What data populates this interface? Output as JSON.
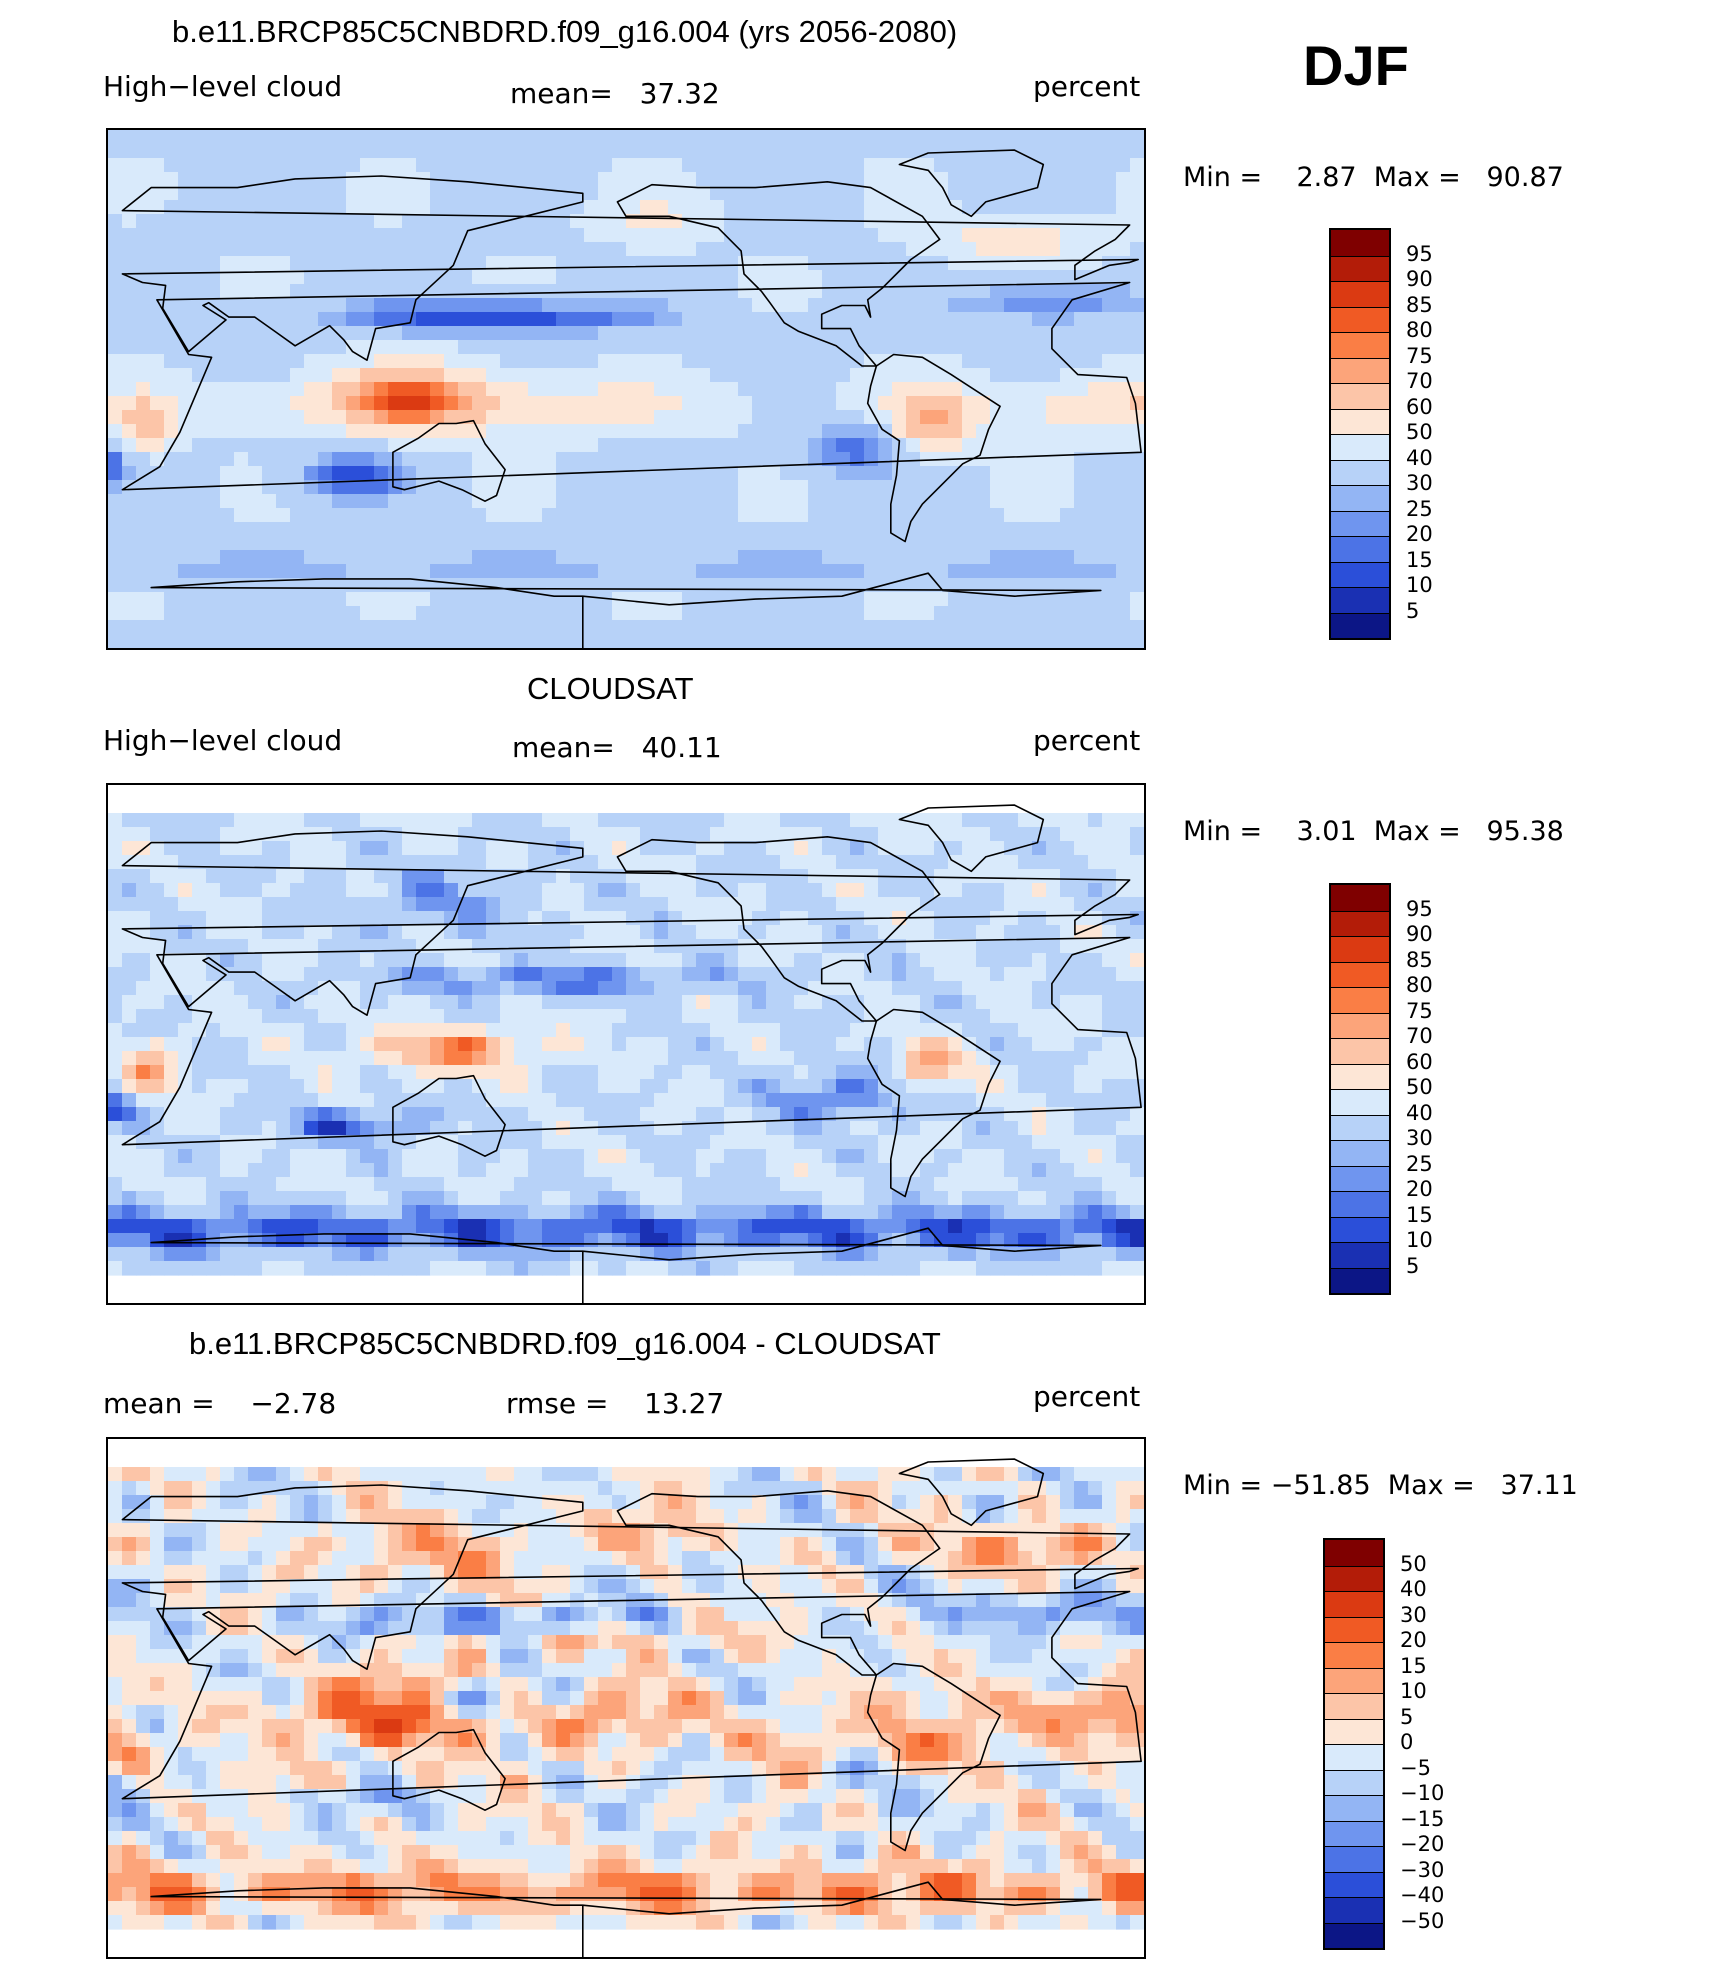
{
  "season": "DJF",
  "panels": [
    {
      "title": "b.e11.BRCP85C5CNBDRD.f09_g16.004 (yrs 2056-2080)",
      "left_label": "High−level cloud",
      "center_label": "mean=   37.32",
      "right_label": "percent",
      "min_max": "Min =    2.87  Max =   90.87",
      "field": "model",
      "colorbar": {
        "labels": [
          "95",
          "90",
          "85",
          "80",
          "75",
          "70",
          "60",
          "50",
          "40",
          "30",
          "25",
          "20",
          "15",
          "10",
          "5"
        ],
        "colors": [
          "#7f0000",
          "#b31c08",
          "#db3a12",
          "#f05a24",
          "#fa7e45",
          "#fca47a",
          "#fcc5a8",
          "#fde6d6",
          "#d9eafb",
          "#b7d2f8",
          "#93b5f4",
          "#6f95ef",
          "#4c73e6",
          "#2b4fd9",
          "#1a30b3",
          "#0c1686"
        ]
      }
    },
    {
      "title": "CLOUDSAT",
      "left_label": "High−level cloud",
      "center_label": "mean=   40.11",
      "right_label": "percent",
      "min_max": "Min =    3.01  Max =   95.38",
      "field": "obs",
      "colorbar": {
        "labels": [
          "95",
          "90",
          "85",
          "80",
          "75",
          "70",
          "60",
          "50",
          "40",
          "30",
          "25",
          "20",
          "15",
          "10",
          "5"
        ],
        "colors": [
          "#7f0000",
          "#b31c08",
          "#db3a12",
          "#f05a24",
          "#fa7e45",
          "#fca47a",
          "#fcc5a8",
          "#fde6d6",
          "#d9eafb",
          "#b7d2f8",
          "#93b5f4",
          "#6f95ef",
          "#4c73e6",
          "#2b4fd9",
          "#1a30b3",
          "#0c1686"
        ]
      }
    },
    {
      "title": "b.e11.BRCP85C5CNBDRD.f09_g16.004 - CLOUDSAT",
      "left_label": "mean =    −2.78",
      "center_label": "rmse =    13.27",
      "right_label": "percent",
      "min_max": "Min = −51.85  Max =   37.11",
      "field": "diff",
      "colorbar": {
        "labels": [
          "50",
          "40",
          "30",
          "20",
          "15",
          "10",
          "5",
          "0",
          "−5",
          "−10",
          "−15",
          "−20",
          "−30",
          "−40",
          "−50"
        ],
        "colors": [
          "#7f0000",
          "#b31c08",
          "#db3a12",
          "#f05a24",
          "#fa7e45",
          "#fca47a",
          "#fcc5a8",
          "#fde6d6",
          "#d9eafb",
          "#b7d2f8",
          "#93b5f4",
          "#6f95ef",
          "#4c73e6",
          "#2b4fd9",
          "#1a30b3",
          "#0c1686"
        ]
      }
    }
  ]
}
